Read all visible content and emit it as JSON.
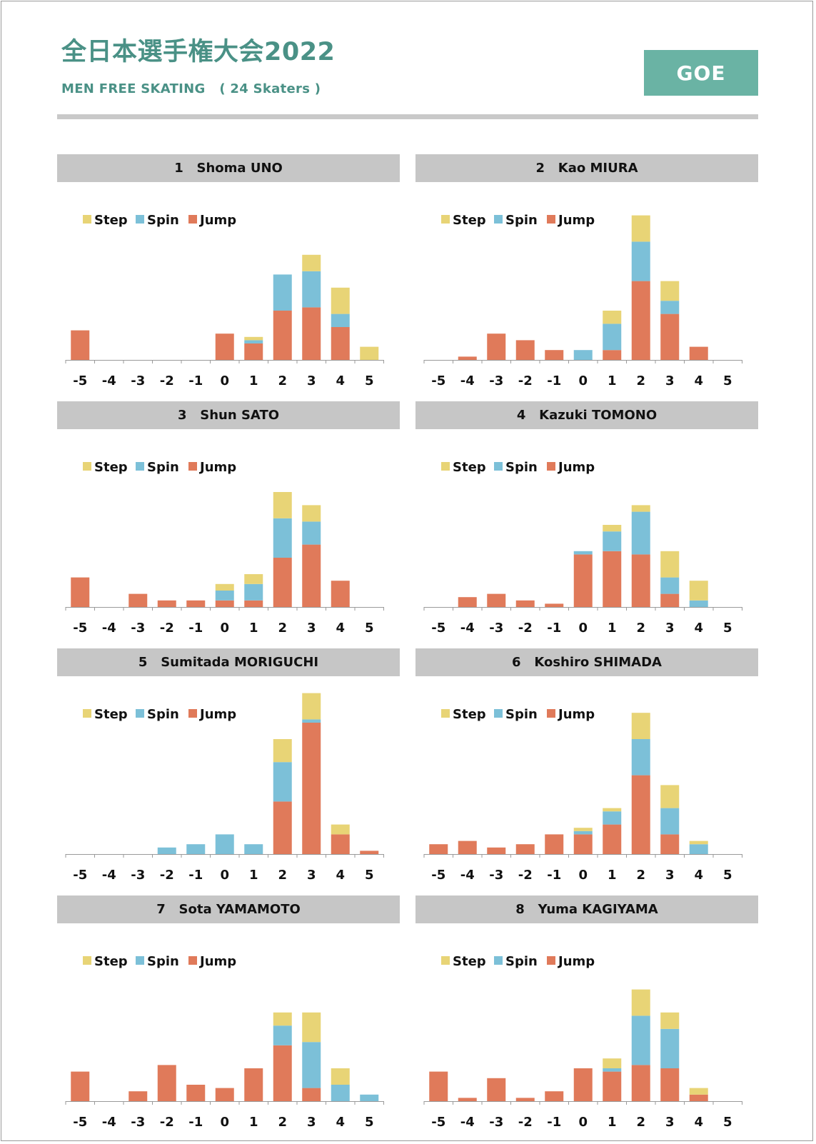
{
  "page": {
    "title": "全日本選手権大会2022",
    "subtitle": "MEN FREE SKATING   ( 24 Skaters )",
    "badge": "GOE"
  },
  "colors": {
    "step": "#e8d476",
    "spin": "#7cc0d8",
    "jump": "#e07a5a",
    "axis": "#9a9a9a"
  },
  "legend": [
    "Step",
    "Spin",
    "Jump"
  ],
  "chart_data": [
    {
      "type": "bar",
      "stacked": true,
      "title": "1   Shoma UNO",
      "categories": [
        "-5",
        "-4",
        "-3",
        "-2",
        "-1",
        "0",
        "1",
        "2",
        "3",
        "4",
        "5"
      ],
      "series": [
        {
          "name": "Jump",
          "values": [
            9,
            0,
            0,
            0,
            0,
            8,
            5,
            15,
            16,
            10,
            0
          ]
        },
        {
          "name": "Spin",
          "values": [
            0,
            0,
            0,
            0,
            0,
            0,
            1,
            11,
            11,
            4,
            0
          ]
        },
        {
          "name": "Step",
          "values": [
            0,
            0,
            0,
            0,
            0,
            0,
            1,
            0,
            5,
            8,
            4
          ]
        }
      ],
      "legend_position": "top-left"
    },
    {
      "type": "bar",
      "stacked": true,
      "title": "2   Kao MIURA",
      "categories": [
        "-5",
        "-4",
        "-3",
        "-2",
        "-1",
        "0",
        "1",
        "2",
        "3",
        "4",
        "5"
      ],
      "series": [
        {
          "name": "Jump",
          "values": [
            0,
            1,
            8,
            6,
            3,
            0,
            3,
            24,
            14,
            4,
            0
          ]
        },
        {
          "name": "Spin",
          "values": [
            0,
            0,
            0,
            0,
            0,
            3,
            8,
            12,
            4,
            0,
            0
          ]
        },
        {
          "name": "Step",
          "values": [
            0,
            0,
            0,
            0,
            0,
            0,
            4,
            8,
            6,
            0,
            0
          ]
        }
      ],
      "legend_position": "top-left"
    },
    {
      "type": "bar",
      "stacked": true,
      "title": "3   Shun SATO",
      "categories": [
        "-5",
        "-4",
        "-3",
        "-2",
        "-1",
        "0",
        "1",
        "2",
        "3",
        "4",
        "5"
      ],
      "series": [
        {
          "name": "Jump",
          "values": [
            9,
            0,
            4,
            2,
            2,
            2,
            2,
            15,
            19,
            8,
            0
          ]
        },
        {
          "name": "Spin",
          "values": [
            0,
            0,
            0,
            0,
            0,
            3,
            5,
            12,
            7,
            0,
            0
          ]
        },
        {
          "name": "Step",
          "values": [
            0,
            0,
            0,
            0,
            0,
            2,
            3,
            8,
            5,
            0,
            0
          ]
        }
      ],
      "legend_position": "top-left"
    },
    {
      "type": "bar",
      "stacked": true,
      "title": "4   Kazuki TOMONO",
      "categories": [
        "-5",
        "-4",
        "-3",
        "-2",
        "-1",
        "0",
        "1",
        "2",
        "3",
        "4",
        "5"
      ],
      "series": [
        {
          "name": "Jump",
          "values": [
            0,
            3,
            4,
            2,
            1,
            16,
            17,
            16,
            4,
            0,
            0
          ]
        },
        {
          "name": "Spin",
          "values": [
            0,
            0,
            0,
            0,
            0,
            1,
            6,
            13,
            5,
            2,
            0
          ]
        },
        {
          "name": "Step",
          "values": [
            0,
            0,
            0,
            0,
            0,
            0,
            2,
            2,
            8,
            6,
            0
          ]
        }
      ],
      "legend_position": "top-left"
    },
    {
      "type": "bar",
      "stacked": true,
      "title": "5   Sumitada MORIGUCHI",
      "categories": [
        "-5",
        "-4",
        "-3",
        "-2",
        "-1",
        "0",
        "1",
        "2",
        "3",
        "4",
        "5"
      ],
      "series": [
        {
          "name": "Jump",
          "values": [
            0,
            0,
            0,
            0,
            0,
            0,
            0,
            16,
            40,
            6,
            1
          ]
        },
        {
          "name": "Spin",
          "values": [
            0,
            0,
            0,
            2,
            3,
            6,
            3,
            12,
            1,
            0,
            0
          ]
        },
        {
          "name": "Step",
          "values": [
            0,
            0,
            0,
            0,
            0,
            0,
            0,
            7,
            8,
            3,
            0
          ]
        }
      ],
      "legend_position": "top-left"
    },
    {
      "type": "bar",
      "stacked": true,
      "title": "6   Koshiro SHIMADA",
      "categories": [
        "-5",
        "-4",
        "-3",
        "-2",
        "-1",
        "0",
        "1",
        "2",
        "3",
        "4",
        "5"
      ],
      "series": [
        {
          "name": "Jump",
          "values": [
            3,
            4,
            2,
            3,
            6,
            6,
            9,
            24,
            6,
            0,
            0
          ]
        },
        {
          "name": "Spin",
          "values": [
            0,
            0,
            0,
            0,
            0,
            1,
            4,
            11,
            8,
            3,
            0
          ]
        },
        {
          "name": "Step",
          "values": [
            0,
            0,
            0,
            0,
            0,
            1,
            1,
            8,
            7,
            1,
            0
          ]
        }
      ],
      "legend_position": "top-left"
    },
    {
      "type": "bar",
      "stacked": true,
      "title": "7   Sota YAMAMOTO",
      "categories": [
        "-5",
        "-4",
        "-3",
        "-2",
        "-1",
        "0",
        "1",
        "2",
        "3",
        "4",
        "5"
      ],
      "series": [
        {
          "name": "Jump",
          "values": [
            9,
            0,
            3,
            11,
            5,
            4,
            10,
            17,
            4,
            0,
            0
          ]
        },
        {
          "name": "Spin",
          "values": [
            0,
            0,
            0,
            0,
            0,
            0,
            0,
            6,
            14,
            5,
            2
          ]
        },
        {
          "name": "Step",
          "values": [
            0,
            0,
            0,
            0,
            0,
            0,
            0,
            4,
            9,
            5,
            0
          ]
        }
      ],
      "legend_position": "top-left"
    },
    {
      "type": "bar",
      "stacked": true,
      "title": "8   Yuma KAGIYAMA",
      "categories": [
        "-5",
        "-4",
        "-3",
        "-2",
        "-1",
        "0",
        "1",
        "2",
        "3",
        "4",
        "5"
      ],
      "series": [
        {
          "name": "Jump",
          "values": [
            9,
            1,
            7,
            1,
            3,
            10,
            9,
            11,
            10,
            2,
            0
          ]
        },
        {
          "name": "Spin",
          "values": [
            0,
            0,
            0,
            0,
            0,
            0,
            1,
            15,
            12,
            0,
            0
          ]
        },
        {
          "name": "Step",
          "values": [
            0,
            0,
            0,
            0,
            0,
            0,
            3,
            8,
            5,
            2,
            0
          ]
        }
      ],
      "legend_position": "top-left"
    }
  ]
}
